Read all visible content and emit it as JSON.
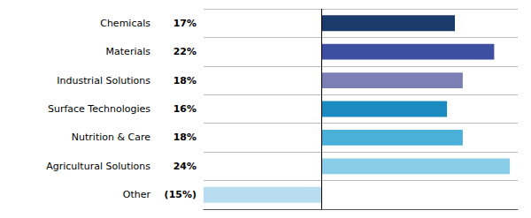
{
  "chart_data": {
    "type": "bar",
    "orientation": "horizontal",
    "categories": [
      "Chemicals",
      "Materials",
      "Industrial Solutions",
      "Surface Technologies",
      "Nutrition & Care",
      "Agricultural Solutions",
      "Other"
    ],
    "values": [
      17,
      22,
      18,
      16,
      18,
      24,
      -15
    ],
    "value_labels": [
      "17%",
      "22%",
      "18%",
      "16%",
      "18%",
      "24%",
      "(15%)"
    ],
    "data_labels": true,
    "colors": [
      "#1a3a6b",
      "#3d4fa0",
      "#7b7fb5",
      "#1a8abf",
      "#4ab0d9",
      "#8acde8",
      "#b8dcf0"
    ],
    "xlim": [
      -15,
      25
    ],
    "tick_labels": false,
    "grid": true
  }
}
